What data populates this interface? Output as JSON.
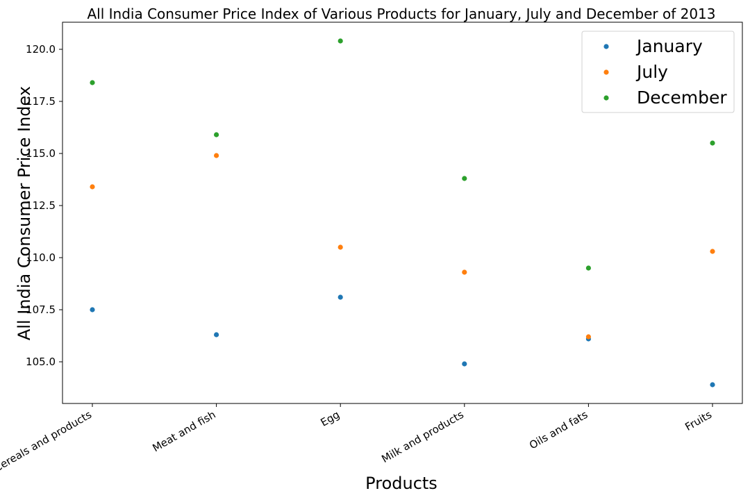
{
  "chart_data": {
    "type": "scatter",
    "title": "All India Consumer Price Index of Various Products for January, July and December of 2013",
    "xlabel": "Products",
    "ylabel": "All India Consumer Price Index",
    "categories": [
      "Cereals and products",
      "Meat and fish",
      "Egg",
      "Milk and products",
      "Oils and fats",
      "Fruits"
    ],
    "series": [
      {
        "name": "January",
        "color": "#1f77b4",
        "values": [
          107.5,
          106.3,
          108.1,
          104.9,
          106.1,
          103.9
        ]
      },
      {
        "name": "July",
        "color": "#ff7f0e",
        "values": [
          113.4,
          114.9,
          110.5,
          109.3,
          106.2,
          110.3
        ]
      },
      {
        "name": "December",
        "color": "#2ca02c",
        "values": [
          118.4,
          115.9,
          120.4,
          113.8,
          109.5,
          115.5
        ]
      }
    ],
    "ylim": [
      103.0,
      121.3
    ],
    "yticks": [
      105.0,
      107.5,
      110.0,
      112.5,
      115.0,
      117.5,
      120.0
    ],
    "ytick_labels": [
      "105.0",
      "107.5",
      "110.0",
      "112.5",
      "115.0",
      "117.5",
      "120.0"
    ],
    "grid": false,
    "legend_position": "top-right"
  }
}
